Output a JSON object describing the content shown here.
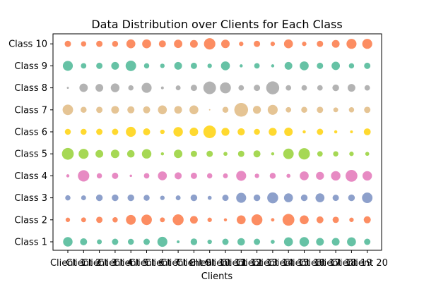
{
  "chart_data": {
    "type": "scatter",
    "title": "Data Distribution over Clients for Each Class",
    "xlabel": "Clients",
    "ylabel": "",
    "grid": false,
    "legend": "none",
    "x_categories": [
      "Client 1",
      "Client 2",
      "Client 3",
      "Client 4",
      "Client 5",
      "Client 6",
      "Client 7",
      "Client 8",
      "Client 9",
      "Client 10",
      "Client 11",
      "Client 12",
      "Client 13",
      "Client 14",
      "Client 15",
      "Client 16",
      "Client 17",
      "Client 18",
      "Client 19",
      "Client 20"
    ],
    "y_categories": [
      "Class 1",
      "Class 2",
      "Class 3",
      "Class 4",
      "Class 5",
      "Class 6",
      "Class 7",
      "Class 8",
      "Class 9",
      "Class 10"
    ],
    "class_colors": [
      "#66c2a5",
      "#fc8d62",
      "#8da0cb",
      "#e78ac3",
      "#a6d854",
      "#ffd92f",
      "#e5c494",
      "#b3b3b3",
      "#66c2a5",
      "#fc8d62"
    ],
    "sizes_note_unit": "relative marker size (0-100)",
    "sizes": [
      [
        45,
        25,
        12,
        20,
        18,
        20,
        50,
        4,
        22,
        10,
        20,
        28,
        20,
        8,
        40,
        45,
        30,
        30,
        40,
        20
      ],
      [
        10,
        12,
        20,
        14,
        48,
        55,
        12,
        60,
        30,
        10,
        5,
        40,
        60,
        6,
        70,
        40,
        24,
        20,
        10,
        25
      ],
      [
        14,
        12,
        22,
        22,
        22,
        18,
        10,
        12,
        22,
        8,
        20,
        50,
        22,
        60,
        40,
        22,
        40,
        20,
        22,
        55
      ],
      [
        5,
        65,
        14,
        20,
        3,
        15,
        40,
        25,
        20,
        14,
        12,
        50,
        10,
        18,
        8,
        40,
        32,
        45,
        70,
        45
      ],
      [
        70,
        50,
        30,
        36,
        28,
        45,
        5,
        36,
        20,
        20,
        8,
        20,
        25,
        5,
        55,
        65,
        15,
        14,
        10,
        8
      ],
      [
        18,
        18,
        20,
        20,
        50,
        25,
        10,
        45,
        36,
        80,
        32,
        26,
        18,
        32,
        36,
        5,
        20,
        5,
        4,
        24
      ],
      [
        55,
        18,
        20,
        30,
        25,
        25,
        40,
        30,
        40,
        1,
        18,
        95,
        32,
        50,
        15,
        18,
        20,
        12,
        14,
        20
      ],
      [
        2,
        35,
        30,
        38,
        14,
        50,
        4,
        12,
        20,
        80,
        60,
        15,
        20,
        85,
        15,
        15,
        15,
        22,
        30,
        15
      ],
      [
        50,
        15,
        20,
        30,
        55,
        14,
        10,
        30,
        20,
        10,
        40,
        5,
        15,
        5,
        30,
        40,
        20,
        35,
        14,
        20
      ],
      [
        20,
        14,
        20,
        18,
        40,
        40,
        25,
        35,
        30,
        65,
        36,
        10,
        20,
        10,
        40,
        10,
        20,
        30,
        50,
        50
      ]
    ]
  }
}
